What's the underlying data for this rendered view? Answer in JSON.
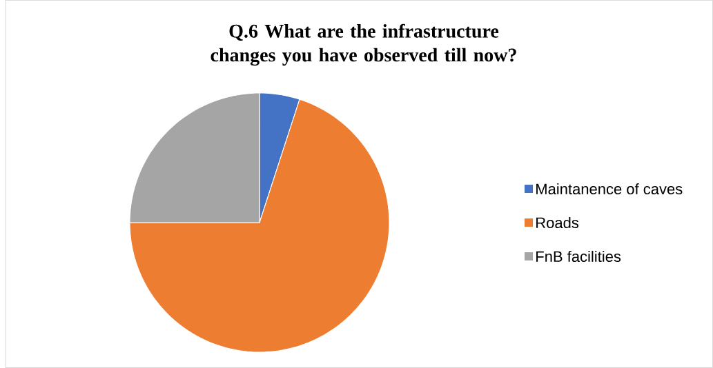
{
  "chart_data": {
    "type": "pie",
    "title": "Q.6 What are the infrastructure changes you have observed till now?",
    "categories": [
      "Maintanence of caves",
      "Roads",
      "FnB facilities"
    ],
    "values": [
      5,
      70,
      25
    ],
    "colors": [
      "#4472c4",
      "#ed7d31",
      "#a5a5a5"
    ],
    "legend": "right"
  }
}
